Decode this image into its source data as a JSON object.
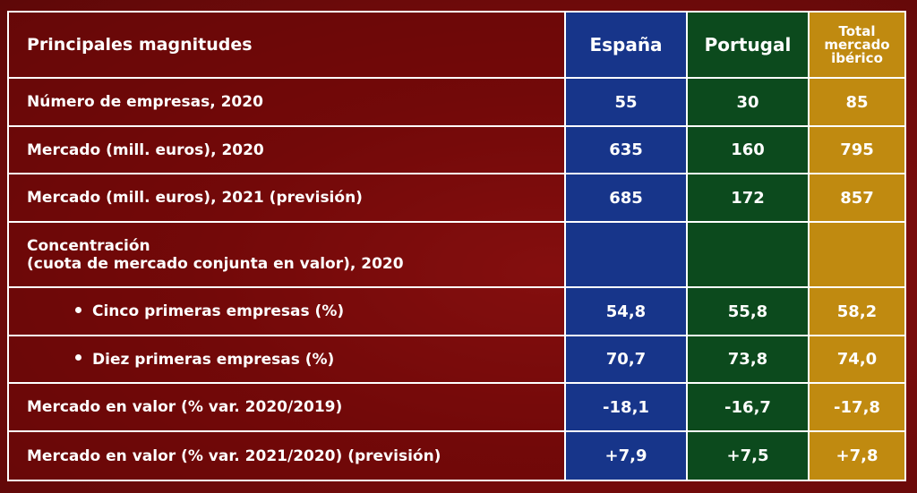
{
  "header": {
    "label": "Principales magnitudes",
    "espana": "España",
    "portugal": "Portugal",
    "total_line1": "Total",
    "total_line2": "mercado",
    "total_line3": "ibérico"
  },
  "rows": [
    {
      "label": "Número de empresas, 2020",
      "espana": "55",
      "portugal": "30",
      "total": "85"
    },
    {
      "label": "Mercado (mill. euros), 2020",
      "espana": "635",
      "portugal": "160",
      "total": "795"
    },
    {
      "label": "Mercado (mill. euros), 2021 (previsión)",
      "espana": "685",
      "portugal": "172",
      "total": "857"
    },
    {
      "label_line1": "Concentración",
      "label_line2": "(cuota de mercado conjunta en valor), 2020",
      "espana": "",
      "portugal": "",
      "total": ""
    },
    {
      "label": "Cinco primeras empresas (%)",
      "espana": "54,8",
      "portugal": "55,8",
      "total": "58,2"
    },
    {
      "label": "Diez primeras empresas (%)",
      "espana": "70,7",
      "portugal": "73,8",
      "total": "74,0"
    },
    {
      "label": "Mercado en valor (% var. 2020/2019)",
      "espana": "-18,1",
      "portugal": "-16,7",
      "total": "-17,8"
    },
    {
      "label": "Mercado en valor (% var. 2021/2020) (previsión)",
      "espana": "+7,9",
      "portugal": "+7,5",
      "total": "+7,8"
    }
  ],
  "colors": {
    "espana": "#17358a",
    "portugal": "#0c4a1d",
    "total": "#c08a10",
    "background": "#7a0c0c"
  }
}
